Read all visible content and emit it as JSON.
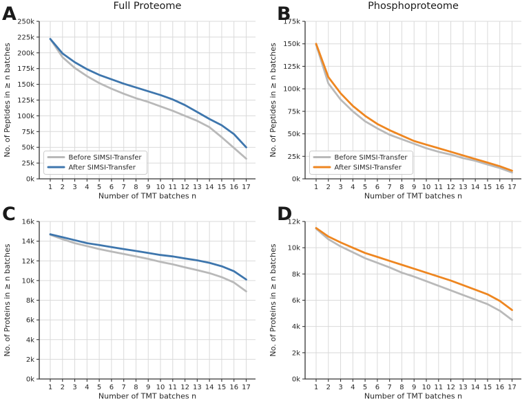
{
  "figure": {
    "background": "#ffffff",
    "text_color": "#262626",
    "grid_color": "#d9d9d9",
    "spine_color": "#333333",
    "legend_border_color": "#cccccc",
    "legend_bg": "rgba(255,255,255,0.85)"
  },
  "chart_data": [
    {
      "type": "line",
      "panel_label": "A",
      "title": "Full Proteome",
      "xlabel": "Number of TMT batches n",
      "ylabel": "No. of Peptides in ≥ n batches",
      "x": [
        1,
        2,
        3,
        4,
        5,
        6,
        7,
        8,
        9,
        10,
        11,
        12,
        13,
        14,
        15,
        16,
        17
      ],
      "xtick_labels": [
        "1",
        "2",
        "3",
        "4",
        "5",
        "6",
        "7",
        "8",
        "9",
        "10",
        "11",
        "12",
        "13",
        "14",
        "15",
        "16",
        "17"
      ],
      "ylim": [
        0,
        250000
      ],
      "ytick_step": 25000,
      "ytick_labels": [
        "0k",
        "25k",
        "50k",
        "75k",
        "100k",
        "125k",
        "150k",
        "175k",
        "200k",
        "225k",
        "250k"
      ],
      "grid": true,
      "legend": {
        "show": true,
        "position": "lower left"
      },
      "series": [
        {
          "name": "Before SIMSI-Transfer",
          "color": "#b9b9b9",
          "values": [
            222000,
            193000,
            176000,
            163000,
            152000,
            143000,
            135000,
            128000,
            122000,
            115000,
            108000,
            100000,
            92000,
            82000,
            66000,
            49000,
            32000
          ]
        },
        {
          "name": "After SIMSI-Transfer",
          "color": "#3e76ad",
          "values": [
            222000,
            199000,
            185000,
            174000,
            165000,
            158000,
            151000,
            145000,
            139000,
            133000,
            126000,
            117000,
            106000,
            95000,
            85000,
            71000,
            50000
          ]
        }
      ]
    },
    {
      "type": "line",
      "panel_label": "B",
      "title": "Phosphoproteome",
      "xlabel": "Number of TMT batches n",
      "ylabel": "No. of Peptides in ≥ n batches",
      "x": [
        1,
        2,
        3,
        4,
        5,
        6,
        7,
        8,
        9,
        10,
        11,
        12,
        13,
        14,
        15,
        16,
        17
      ],
      "xtick_labels": [
        "1",
        "2",
        "3",
        "4",
        "5",
        "6",
        "7",
        "8",
        "9",
        "10",
        "11",
        "12",
        "13",
        "14",
        "15",
        "16",
        "17"
      ],
      "ylim": [
        0,
        175000
      ],
      "ytick_step": 25000,
      "ytick_labels": [
        "0k",
        "25k",
        "50k",
        "75k",
        "100k",
        "125k",
        "150k",
        "175k"
      ],
      "grid": true,
      "legend": {
        "show": true,
        "position": "lower left"
      },
      "series": [
        {
          "name": "Before SIMSI-Transfer",
          "color": "#b9b9b9",
          "values": [
            149000,
            106000,
            88000,
            75000,
            64000,
            56000,
            49000,
            44000,
            39000,
            34000,
            30000,
            27000,
            23000,
            20000,
            16000,
            12000,
            7000
          ]
        },
        {
          "name": "After SIMSI-Transfer",
          "color": "#ee8620",
          "values": [
            150000,
            113000,
            95000,
            81000,
            70000,
            61000,
            54000,
            48000,
            42000,
            38000,
            34000,
            30000,
            26000,
            22000,
            18000,
            14000,
            9000
          ]
        }
      ]
    },
    {
      "type": "line",
      "panel_label": "C",
      "title": "",
      "xlabel": "Number of TMT batches n",
      "ylabel": "No. of Proteins in ≥ n batches",
      "x": [
        1,
        2,
        3,
        4,
        5,
        6,
        7,
        8,
        9,
        10,
        11,
        12,
        13,
        14,
        15,
        16,
        17
      ],
      "xtick_labels": [
        "1",
        "2",
        "3",
        "4",
        "5",
        "6",
        "7",
        "8",
        "9",
        "10",
        "11",
        "12",
        "13",
        "14",
        "15",
        "16",
        "17"
      ],
      "ylim": [
        0,
        16000
      ],
      "ytick_step": 2000,
      "ytick_labels": [
        "0k",
        "2k",
        "4k",
        "6k",
        "8k",
        "10k",
        "12k",
        "14k",
        "16k"
      ],
      "grid": true,
      "legend": {
        "show": false,
        "position": "lower left"
      },
      "series": [
        {
          "name": "Before SIMSI-Transfer",
          "color": "#b9b9b9",
          "values": [
            14650,
            14200,
            13800,
            13500,
            13200,
            12950,
            12700,
            12450,
            12200,
            11900,
            11650,
            11350,
            11050,
            10750,
            10350,
            9800,
            8900
          ]
        },
        {
          "name": "After SIMSI-Transfer",
          "color": "#3e76ad",
          "values": [
            14700,
            14400,
            14100,
            13800,
            13600,
            13400,
            13200,
            13000,
            12800,
            12600,
            12450,
            12250,
            12050,
            11800,
            11450,
            10950,
            10100
          ]
        }
      ]
    },
    {
      "type": "line",
      "panel_label": "D",
      "title": "",
      "xlabel": "Number of TMT batches n",
      "ylabel": "No. of Proteins in ≥ n batches",
      "x": [
        1,
        2,
        3,
        4,
        5,
        6,
        7,
        8,
        9,
        10,
        11,
        12,
        13,
        14,
        15,
        16,
        17
      ],
      "xtick_labels": [
        "1",
        "2",
        "3",
        "4",
        "5",
        "6",
        "7",
        "8",
        "9",
        "10",
        "11",
        "12",
        "13",
        "14",
        "15",
        "16",
        "17"
      ],
      "ylim": [
        0,
        12000
      ],
      "ytick_step": 2000,
      "ytick_labels": [
        "0k",
        "2k",
        "4k",
        "6k",
        "8k",
        "10k",
        "12k"
      ],
      "grid": true,
      "legend": {
        "show": false,
        "position": "lower left"
      },
      "series": [
        {
          "name": "Before SIMSI-Transfer",
          "color": "#b9b9b9",
          "values": [
            11450,
            10650,
            10100,
            9650,
            9200,
            8850,
            8500,
            8100,
            7800,
            7450,
            7100,
            6750,
            6400,
            6050,
            5700,
            5200,
            4500
          ]
        },
        {
          "name": "After SIMSI-Transfer",
          "color": "#ee8620",
          "values": [
            11500,
            10850,
            10400,
            10000,
            9600,
            9300,
            9000,
            8700,
            8400,
            8100,
            7800,
            7500,
            7150,
            6800,
            6450,
            5950,
            5250
          ]
        }
      ]
    }
  ]
}
